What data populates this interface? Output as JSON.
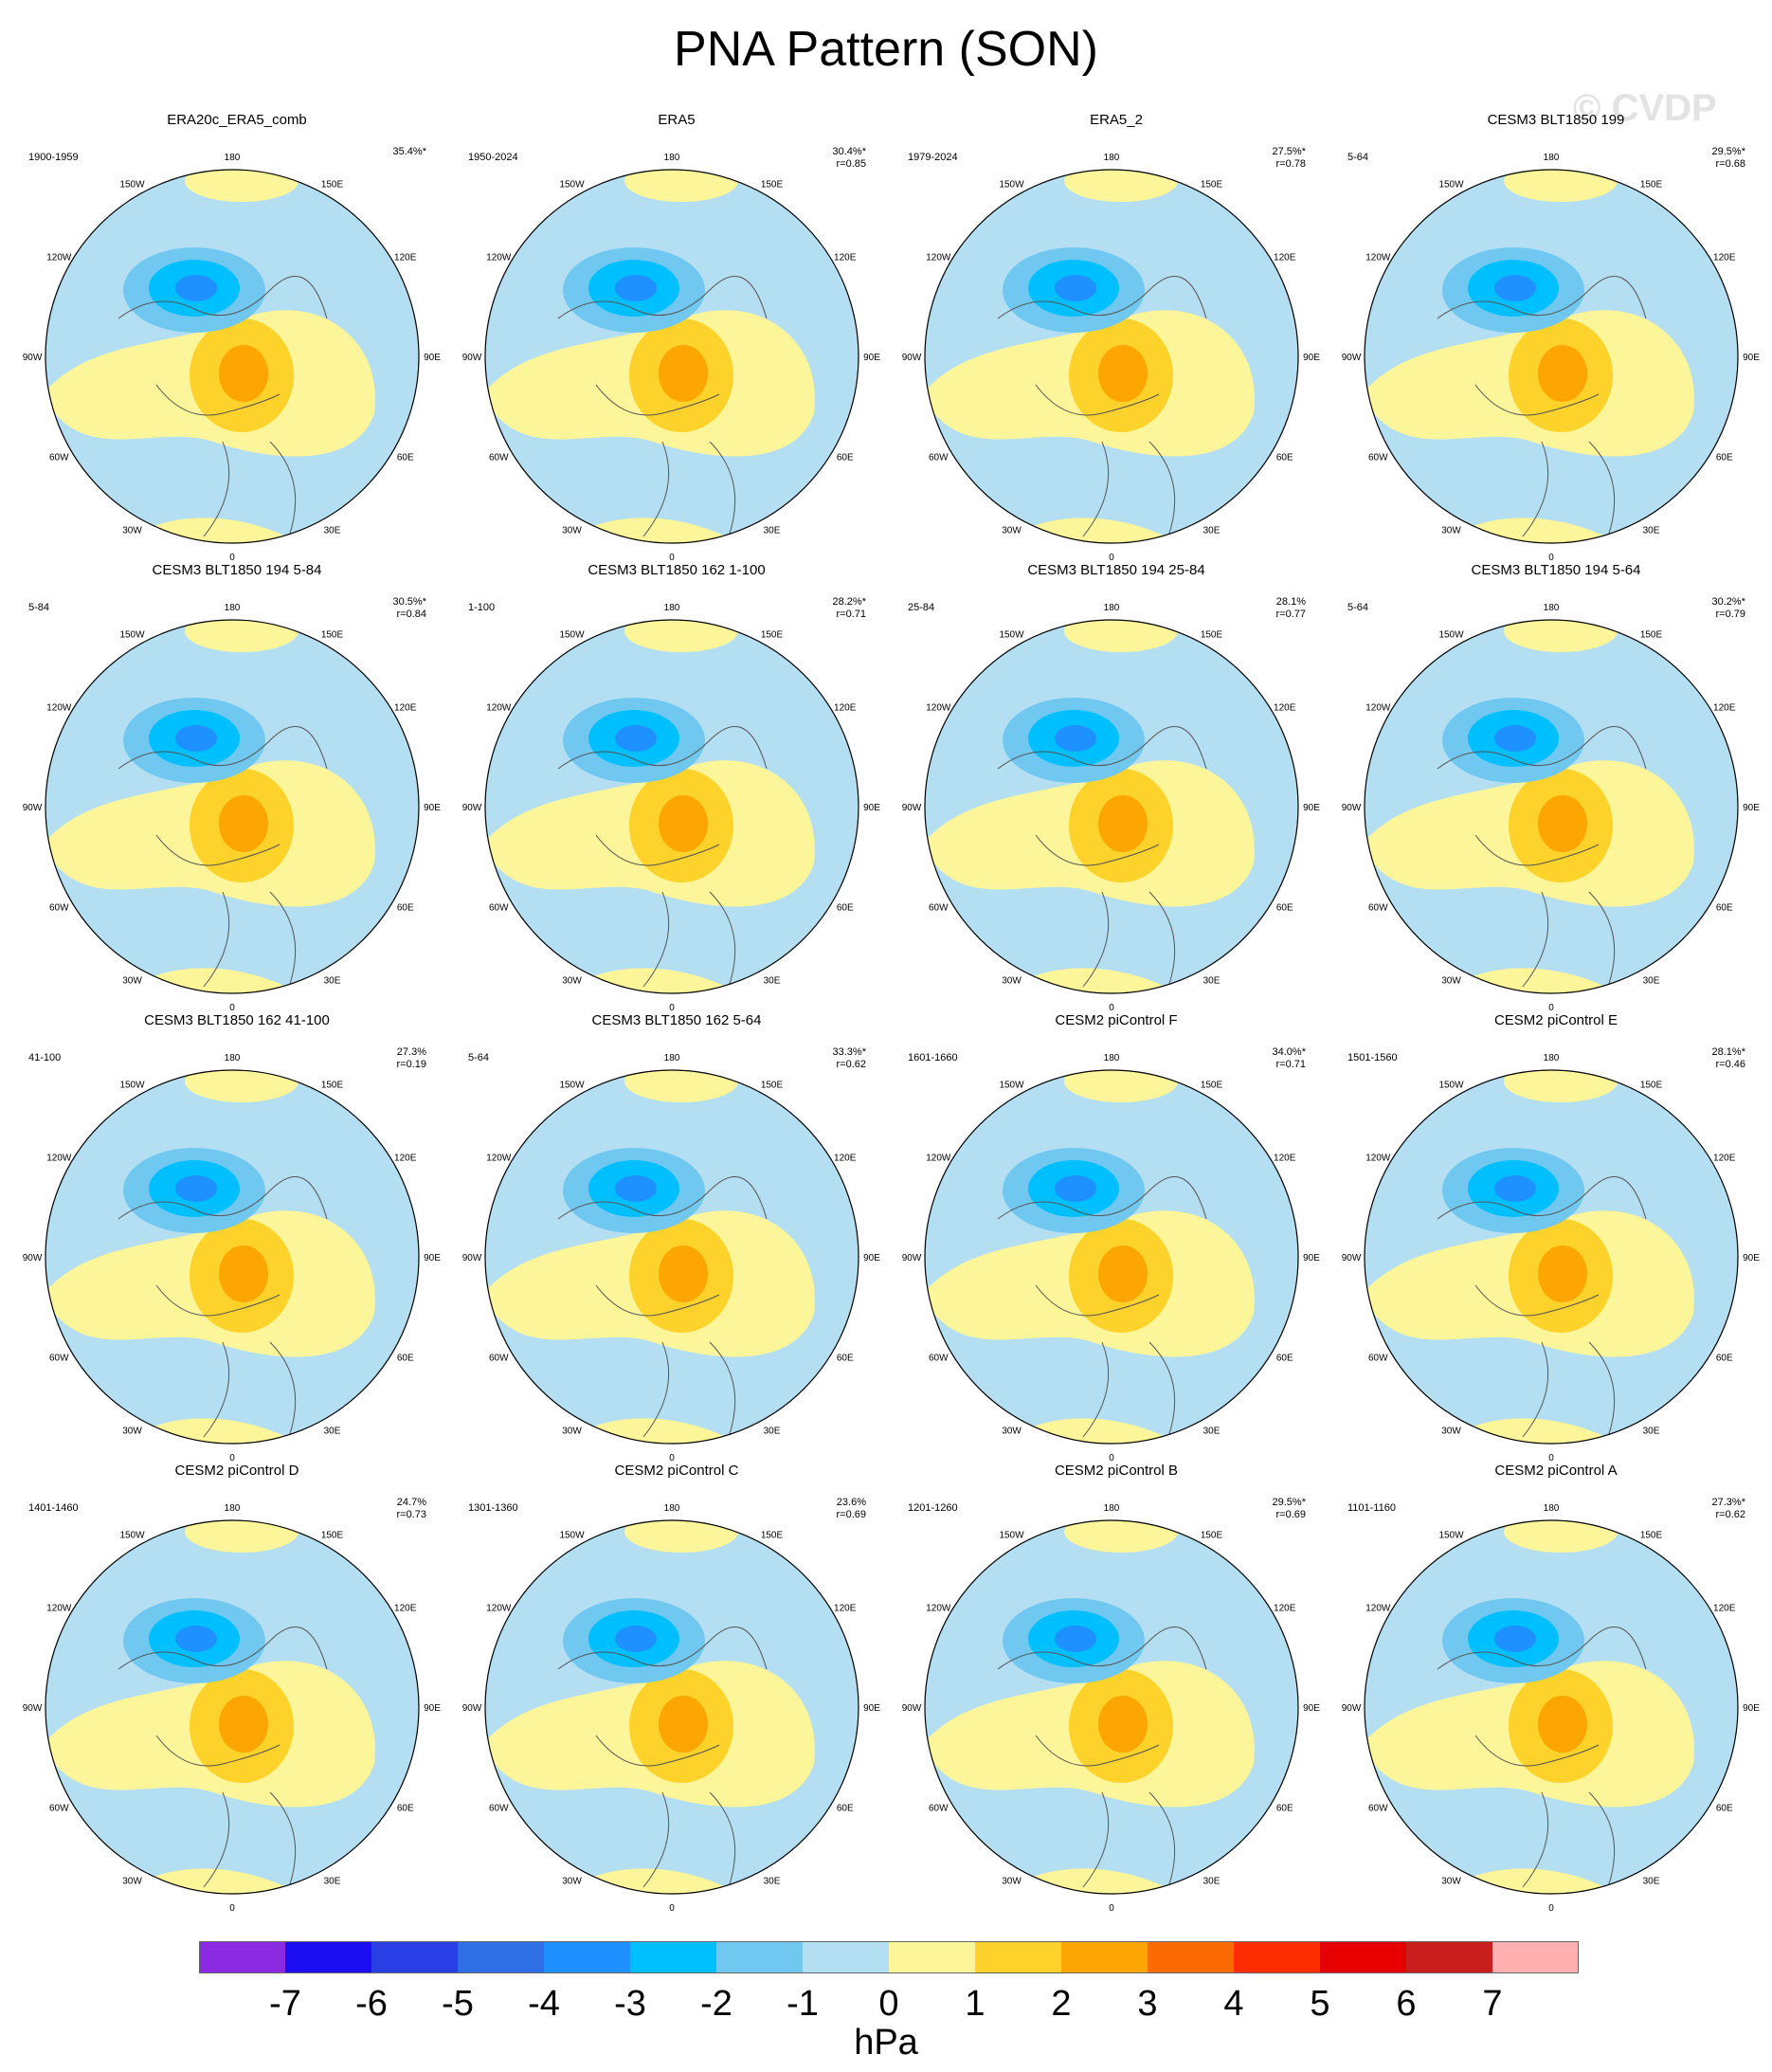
{
  "title": "PNA Pattern (SON)",
  "watermark": "© CVDP",
  "units": "hPa",
  "colorbar": {
    "labels": [
      "-7",
      "-6",
      "-5",
      "-4",
      "-3",
      "-2",
      "-1",
      "0",
      "1",
      "2",
      "3",
      "4",
      "5",
      "6",
      "7"
    ],
    "colors": [
      "#8a2be2",
      "#1a0df2",
      "#2a3ee6",
      "#2f6fe6",
      "#1e90ff",
      "#00bfff",
      "#70c8f0",
      "#b4dff3",
      "#fdf59a",
      "#fdd22a",
      "#fca503",
      "#fc6a03",
      "#fc2d00",
      "#e60000",
      "#c81e1e",
      "#ffb0b0"
    ]
  },
  "lon_labels": [
    "180",
    "150E",
    "120E",
    "90E",
    "60E",
    "30E",
    "0",
    "30W",
    "60W",
    "90W",
    "120W",
    "150W"
  ],
  "panels": [
    {
      "title": "ERA20c_ERA5_comb",
      "period": "1900-1959",
      "pct": "35.4%*",
      "r": ""
    },
    {
      "title": "ERA5",
      "period": "1950-2024",
      "pct": "30.4%*",
      "r": "r=0.85"
    },
    {
      "title": "ERA5_2",
      "period": "1979-2024",
      "pct": "27.5%*",
      "r": "r=0.78"
    },
    {
      "title": "CESM3 BLT1850 199",
      "period": "5-64",
      "pct": "29.5%*",
      "r": "r=0.68"
    },
    {
      "title": "CESM3 BLT1850 194 5-84",
      "period": "5-84",
      "pct": "30.5%*",
      "r": "r=0.84"
    },
    {
      "title": "CESM3 BLT1850 162 1-100",
      "period": "1-100",
      "pct": "28.2%*",
      "r": "r=0.71"
    },
    {
      "title": "CESM3 BLT1850 194 25-84",
      "period": "25-84",
      "pct": "28.1%",
      "r": "r=0.77"
    },
    {
      "title": "CESM3 BLT1850 194 5-64",
      "period": "5-64",
      "pct": "30.2%*",
      "r": "r=0.79"
    },
    {
      "title": "CESM3 BLT1850 162 41-100",
      "period": "41-100",
      "pct": "27.3%",
      "r": "r=0.19"
    },
    {
      "title": "CESM3 BLT1850 162 5-64",
      "period": "5-64",
      "pct": "33.3%*",
      "r": "r=0.62"
    },
    {
      "title": "CESM2 piControl F",
      "period": "1601-1660",
      "pct": "34.0%*",
      "r": "r=0.71"
    },
    {
      "title": "CESM2 piControl E",
      "period": "1501-1560",
      "pct": "28.1%*",
      "r": "r=0.46"
    },
    {
      "title": "CESM2 piControl D",
      "period": "1401-1460",
      "pct": "24.7%",
      "r": "r=0.73"
    },
    {
      "title": "CESM2 piControl C",
      "period": "1301-1360",
      "pct": "23.6%",
      "r": "r=0.69"
    },
    {
      "title": "CESM2 piControl B",
      "period": "1201-1260",
      "pct": "29.5%*",
      "r": "r=0.69"
    },
    {
      "title": "CESM2 piControl A",
      "period": "1101-1160",
      "pct": "27.3%*",
      "r": "r=0.62"
    }
  ]
}
